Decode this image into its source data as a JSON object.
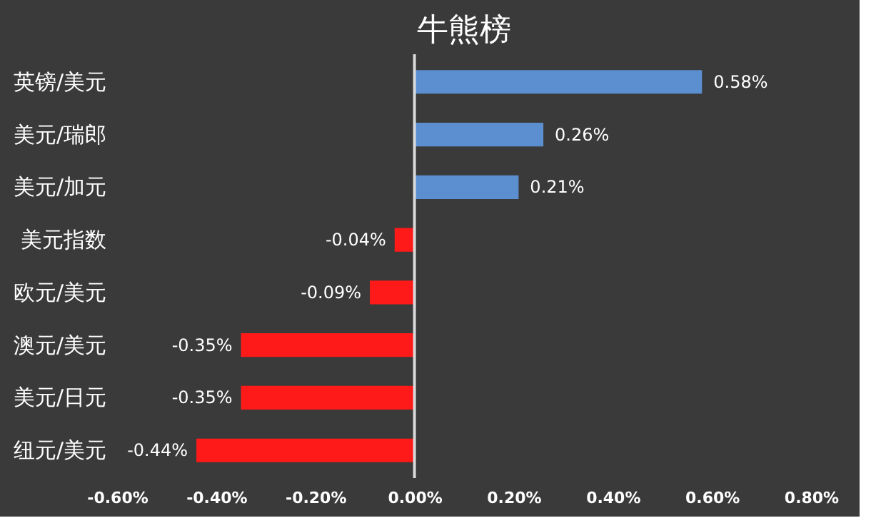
{
  "chart_data": {
    "type": "bar",
    "orientation": "horizontal",
    "title": "牛熊榜",
    "categories": [
      "英镑/美元",
      "美元/瑞郎",
      "美元/加元",
      "美元指数",
      "欧元/美元",
      "澳元/美元",
      "美元/日元",
      "纽元/美元"
    ],
    "values": [
      0.58,
      0.26,
      0.21,
      -0.04,
      -0.09,
      -0.35,
      -0.35,
      -0.44
    ],
    "colors": [
      "#5b8fd0",
      "#5b8fd0",
      "#5b8fd0",
      "#ff1a1a",
      "#ff1a1a",
      "#ff1a1a",
      "#ff1a1a",
      "#ff1a1a"
    ],
    "value_labels": [
      "0.58%",
      "0.26%",
      "0.21%",
      "-0.04%",
      "-0.09%",
      "-0.35%",
      "-0.35%",
      "-0.44%"
    ],
    "xlim": [
      -0.6,
      0.8
    ],
    "xticks": [
      {
        "value": -0.6,
        "label": "-0.60%"
      },
      {
        "value": -0.4,
        "label": "-0.40%"
      },
      {
        "value": -0.2,
        "label": "-0.20%"
      },
      {
        "value": 0,
        "label": "0.00%"
      },
      {
        "value": 0.2,
        "label": "0.20%"
      },
      {
        "value": 0.4,
        "label": "0.40%"
      },
      {
        "value": 0.6,
        "label": "0.60%"
      },
      {
        "value": 0.8,
        "label": "0.80%"
      }
    ],
    "ref_lines": [
      {
        "axis": "x",
        "value": 0,
        "color": "#d9d9d9"
      }
    ],
    "grid": false
  }
}
